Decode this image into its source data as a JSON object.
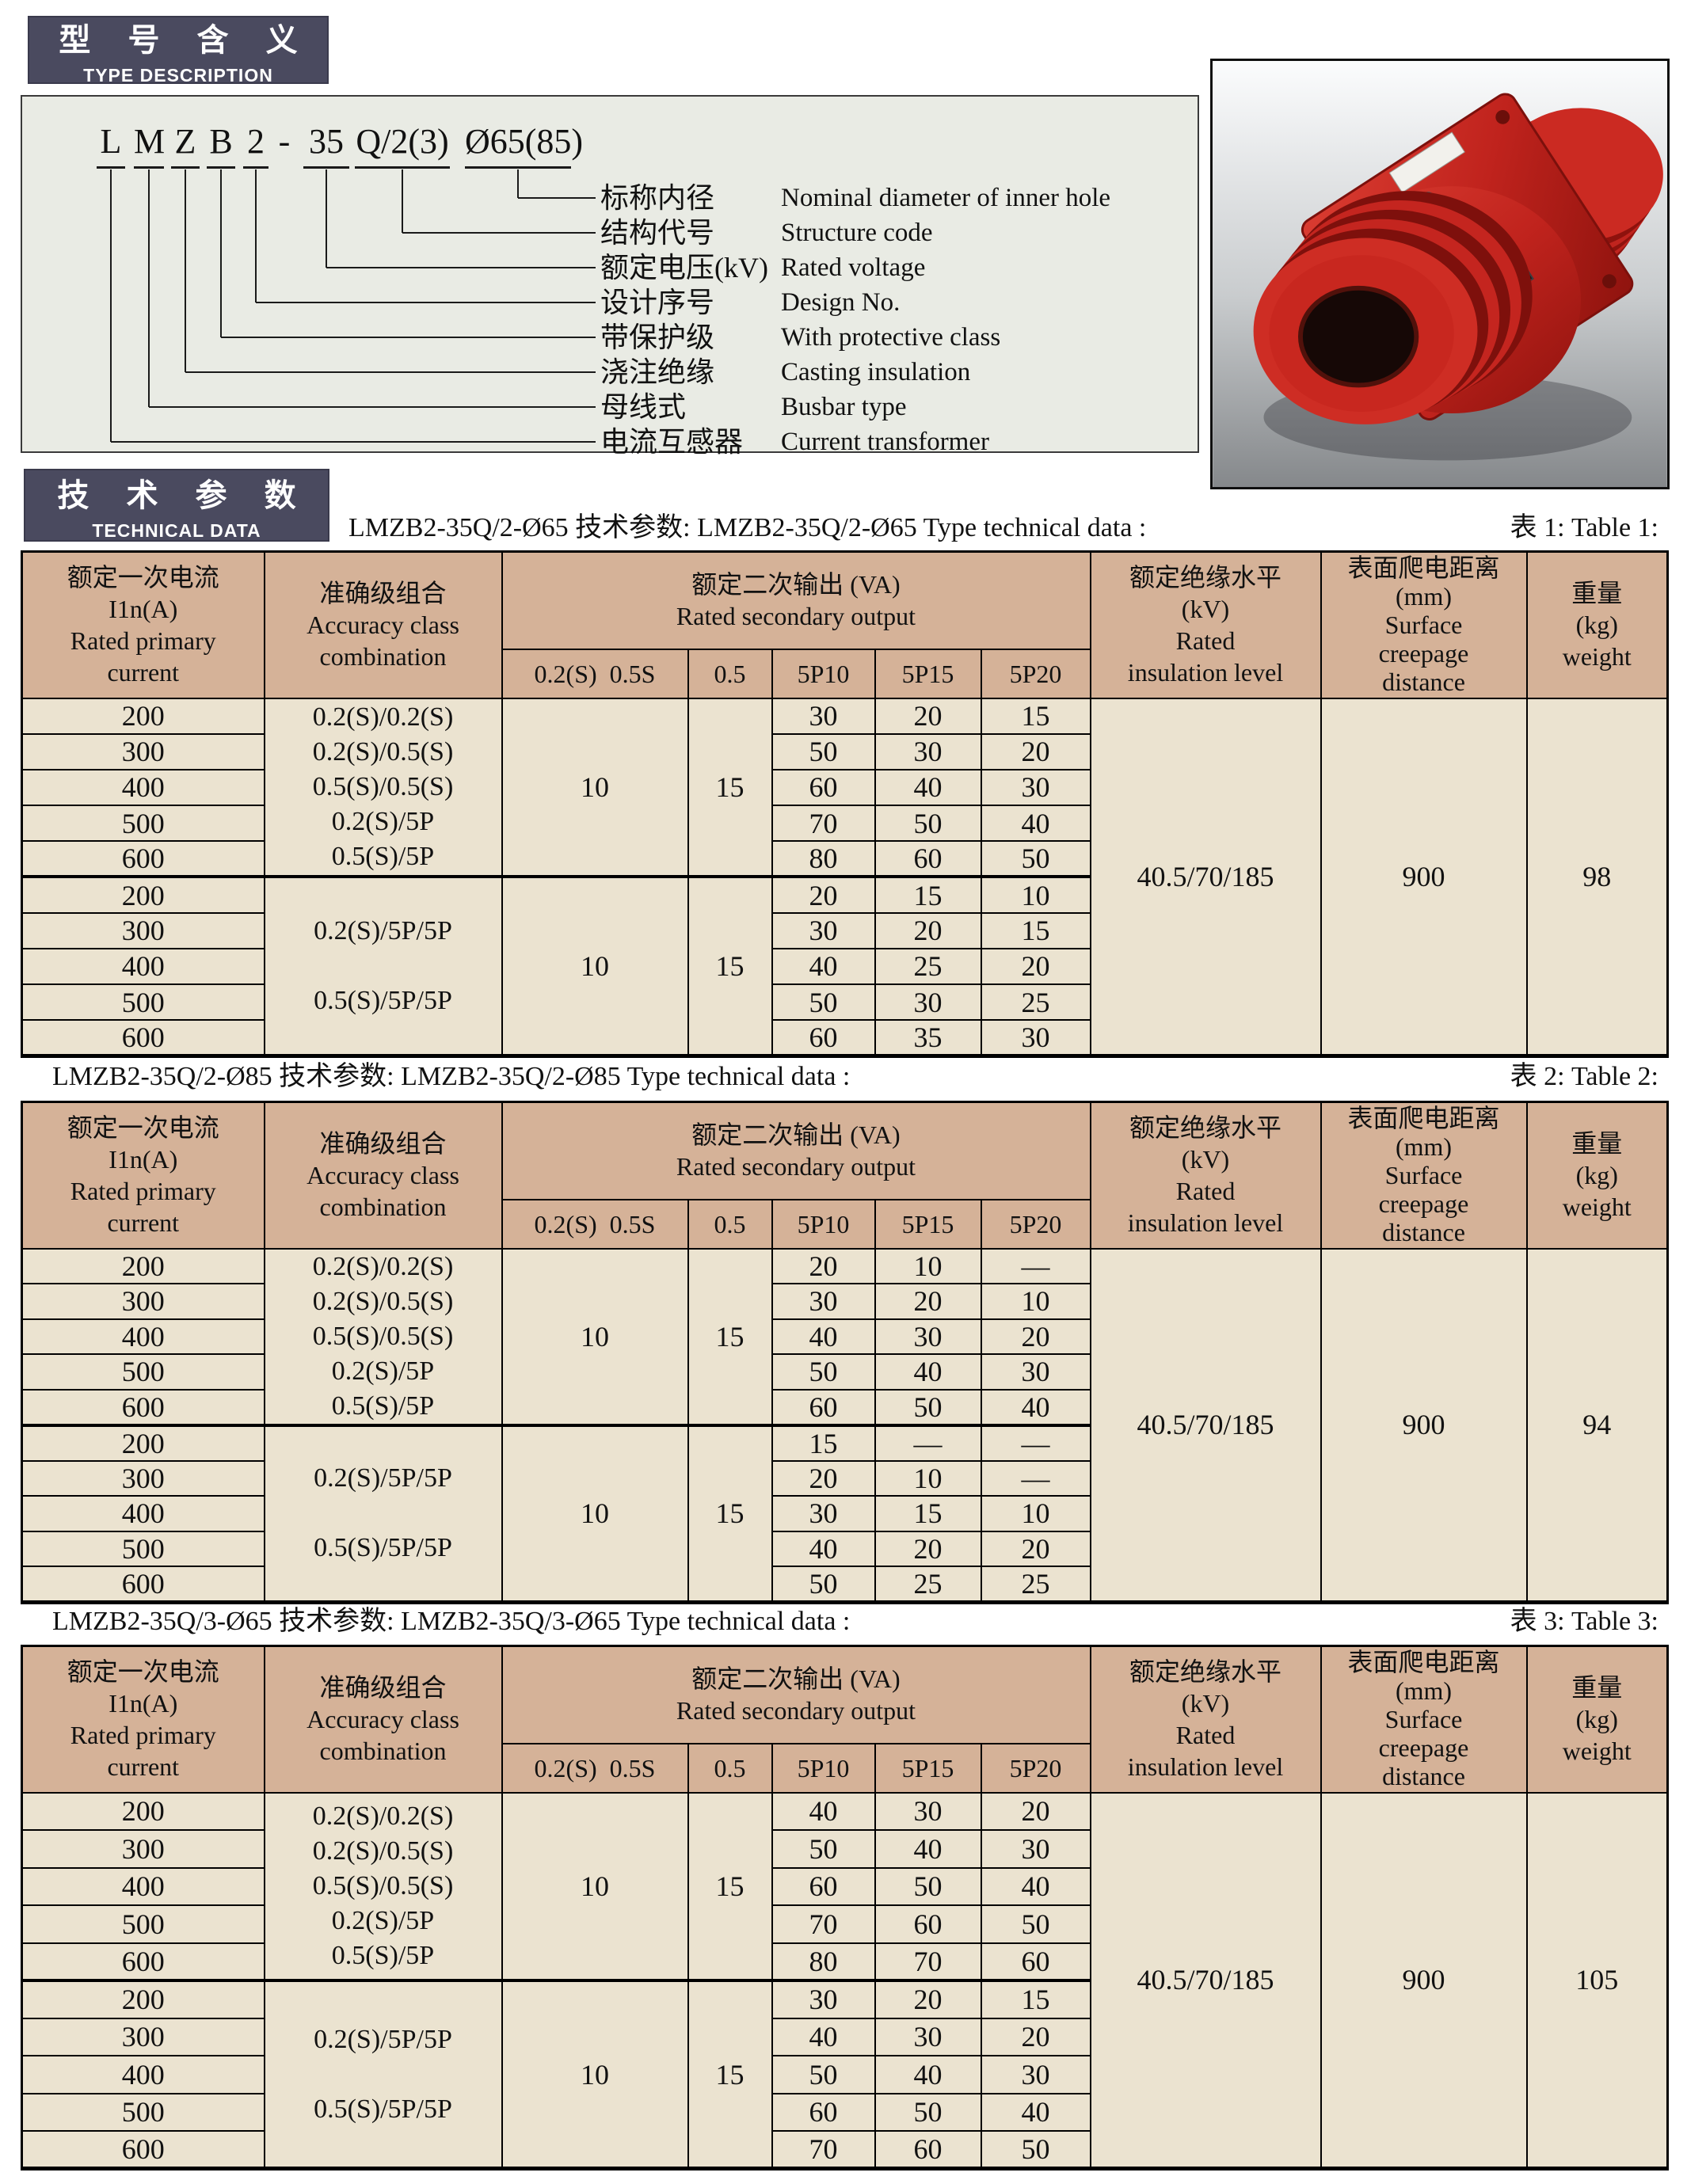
{
  "badges": {
    "type": {
      "zh": "型 号 含 义",
      "en": "TYPE DESCRIPTION"
    },
    "tech": {
      "zh": "技 术 参 数",
      "en": "TECHNICAL DATA"
    }
  },
  "type_description": {
    "code_parts": [
      "L",
      "M",
      "Z",
      "B",
      "2",
      "-",
      "35",
      "Q/2(3)",
      "Ø65(85)"
    ],
    "labels": [
      {
        "zh": "标称内径",
        "en": "Nominal diameter of inner hole"
      },
      {
        "zh": "结构代号",
        "en": "Structure code"
      },
      {
        "zh": "额定电压(kV)",
        "en": "Rated voltage"
      },
      {
        "zh": "设计序号",
        "en": "Design No."
      },
      {
        "zh": "带保护级",
        "en": "With protective class"
      },
      {
        "zh": "浇注绝缘",
        "en": "Casting insulation"
      },
      {
        "zh": "母线式",
        "en": "Busbar type"
      },
      {
        "zh": "电流互感器",
        "en": "Current transformer"
      }
    ]
  },
  "photo": {
    "description": "LMZB2 red cast-resin busbar type current transformer"
  },
  "table_header": {
    "primary_current": "额定一次电流\nI1n(A)\nRated primary\ncurrent",
    "accuracy": "准确级组合\nAccuracy class\ncombination",
    "secondary_output": "额定二次输出 (VA)\nRated secondary output",
    "sub_cols": [
      "0.2(S)  0.5S",
      "0.5",
      "5P10",
      "5P15",
      "5P20"
    ],
    "insulation": "额定绝缘水平\n(kV)\nRated\ninsulation level",
    "creepage": "表面爬电距离\n(mm)\nSurface\ncreepage\ndistance",
    "weight": "重量\n(kg)\nweight"
  },
  "tables": [
    {
      "caption_left": "LMZB2-35Q/2-Ø65  技术参数: LMZB2-35Q/2-Ø65  Type technical data :",
      "caption_right": "表 1: Table 1:",
      "blocks": [
        {
          "currents": [
            "200",
            "300",
            "400",
            "500",
            "600"
          ],
          "accuracy": "0.2(S)/0.2(S)\n0.2(S)/0.5(S)\n0.5(S)/0.5(S)\n0.2(S)/5P\n0.5(S)/5P",
          "out_02s_05s": "10",
          "out_05": "15",
          "p10": [
            "30",
            "50",
            "60",
            "70",
            "80"
          ],
          "p15": [
            "20",
            "30",
            "40",
            "50",
            "60"
          ],
          "p20": [
            "15",
            "20",
            "30",
            "40",
            "50"
          ]
        },
        {
          "currents": [
            "200",
            "300",
            "400",
            "500",
            "600"
          ],
          "accuracy": "0.2(S)/5P/5P\n\n0.5(S)/5P/5P",
          "out_02s_05s": "10",
          "out_05": "15",
          "p10": [
            "20",
            "30",
            "40",
            "50",
            "60"
          ],
          "p15": [
            "15",
            "20",
            "25",
            "30",
            "35"
          ],
          "p20": [
            "10",
            "15",
            "20",
            "25",
            "30"
          ]
        }
      ],
      "insulation": "40.5/70/185",
      "creepage": "900",
      "weight": "98"
    },
    {
      "caption_left": "LMZB2-35Q/2-Ø85  技术参数:  LMZB2-35Q/2-Ø85  Type technical data :",
      "caption_right": "表 2: Table 2:",
      "blocks": [
        {
          "currents": [
            "200",
            "300",
            "400",
            "500",
            "600"
          ],
          "accuracy": "0.2(S)/0.2(S)\n0.2(S)/0.5(S)\n0.5(S)/0.5(S)\n0.2(S)/5P\n0.5(S)/5P",
          "out_02s_05s": "10",
          "out_05": "15",
          "p10": [
            "20",
            "30",
            "40",
            "50",
            "60"
          ],
          "p15": [
            "10",
            "20",
            "30",
            "40",
            "50"
          ],
          "p20": [
            "—",
            "10",
            "20",
            "30",
            "40"
          ]
        },
        {
          "currents": [
            "200",
            "300",
            "400",
            "500",
            "600"
          ],
          "accuracy": "0.2(S)/5P/5P\n\n0.5(S)/5P/5P",
          "out_02s_05s": "10",
          "out_05": "15",
          "p10": [
            "15",
            "20",
            "30",
            "40",
            "50"
          ],
          "p15": [
            "—",
            "10",
            "15",
            "20",
            "25"
          ],
          "p20": [
            "—",
            "—",
            "10",
            "20",
            "25"
          ]
        }
      ],
      "insulation": "40.5/70/185",
      "creepage": "900",
      "weight": "94"
    },
    {
      "caption_left": "LMZB2-35Q/3-Ø65  技术参数:  LMZB2-35Q/3-Ø65  Type technical data :",
      "caption_right": "表 3: Table 3:",
      "blocks": [
        {
          "currents": [
            "200",
            "300",
            "400",
            "500",
            "600"
          ],
          "accuracy": "0.2(S)/0.2(S)\n0.2(S)/0.5(S)\n0.5(S)/0.5(S)\n0.2(S)/5P\n0.5(S)/5P",
          "out_02s_05s": "10",
          "out_05": "15",
          "p10": [
            "40",
            "50",
            "60",
            "70",
            "80"
          ],
          "p15": [
            "30",
            "40",
            "50",
            "60",
            "70"
          ],
          "p20": [
            "20",
            "30",
            "40",
            "50",
            "60"
          ]
        },
        {
          "currents": [
            "200",
            "300",
            "400",
            "500",
            "600"
          ],
          "accuracy": "0.2(S)/5P/5P\n\n0.5(S)/5P/5P",
          "out_02s_05s": "10",
          "out_05": "15",
          "p10": [
            "30",
            "40",
            "50",
            "60",
            "70"
          ],
          "p15": [
            "20",
            "30",
            "40",
            "50",
            "60"
          ],
          "p20": [
            "15",
            "20",
            "30",
            "40",
            "50"
          ]
        }
      ],
      "insulation": "40.5/70/185",
      "creepage": "900",
      "weight": "105"
    }
  ],
  "colors": {
    "badge_bg": "#4a4a5f",
    "table_header_bg": "#d5b298",
    "table_body_bg": "#ebe3d0",
    "diagram_bg": "#e9ebe4",
    "product_red": "#c0231d"
  }
}
